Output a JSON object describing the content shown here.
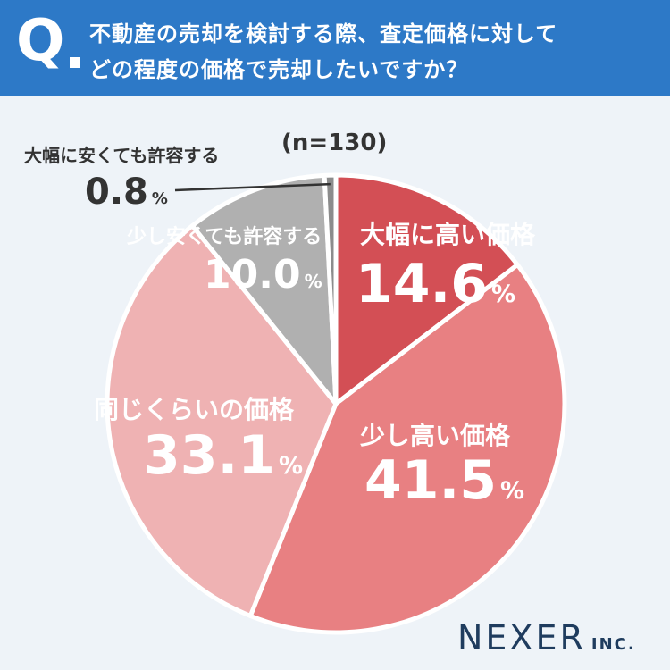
{
  "header": {
    "q_label": "Q",
    "question_line1": "不動産の売却を検討する際、査定価格に対して",
    "question_line2": "どの程度の価格で売却したいですか？"
  },
  "brand": {
    "name": "NEXER",
    "suffix": "INC."
  },
  "chart_data": {
    "type": "pie",
    "n_label": "(n=130)",
    "unit": "%",
    "slices": [
      {
        "label": "大幅に高い価格",
        "value": 14.6,
        "value_text": "14.6",
        "color": "#d34f55",
        "text_color": "#ffffff"
      },
      {
        "label": "少し高い価格",
        "value": 41.5,
        "value_text": "41.5",
        "color": "#e88082",
        "text_color": "#ffffff"
      },
      {
        "label": "同じくらいの価格",
        "value": 33.1,
        "value_text": "33.1",
        "color": "#efb2b3",
        "text_color": "#ffffff"
      },
      {
        "label": "少し安くても許容する",
        "value": 10.0,
        "value_text": "10.0",
        "color": "#b0b0b0",
        "text_color": "#ffffff"
      },
      {
        "label": "大幅に安くても許容する",
        "value": 0.8,
        "value_text": "0.8",
        "color": "#8c8c8c",
        "text_color": "#333333"
      }
    ]
  }
}
